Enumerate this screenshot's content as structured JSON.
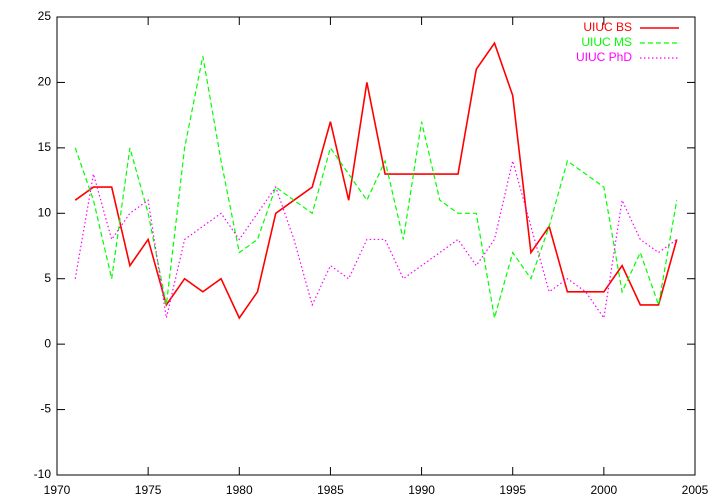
{
  "chart_data": {
    "type": "line",
    "x": [
      1971,
      1972,
      1973,
      1974,
      1975,
      1976,
      1977,
      1978,
      1979,
      1980,
      1981,
      1982,
      1983,
      1984,
      1985,
      1986,
      1987,
      1988,
      1989,
      1990,
      1991,
      1992,
      1993,
      1994,
      1995,
      1996,
      1997,
      1998,
      1999,
      2000,
      2001,
      2002,
      2003,
      2004
    ],
    "series": [
      {
        "name": "UIUC BS",
        "color": "#ff0000",
        "dash": "solid",
        "values": [
          11,
          12,
          12,
          6,
          8,
          3,
          5,
          4,
          5,
          2,
          4,
          10,
          11,
          12,
          17,
          11,
          20,
          13,
          13,
          13,
          13,
          13,
          21,
          23,
          19,
          7,
          9,
          4,
          4,
          4,
          6,
          3,
          3,
          8
        ]
      },
      {
        "name": "UIUC MS",
        "color": "#00ff00",
        "dash": "dashed",
        "values": [
          15,
          11,
          5,
          15,
          10,
          3,
          15,
          22,
          14,
          7,
          8,
          12,
          11,
          10,
          15,
          13,
          11,
          14,
          8,
          17,
          11,
          10,
          10,
          2,
          7,
          5,
          9,
          14,
          13,
          12,
          4,
          7,
          3,
          11
        ]
      },
      {
        "name": "UIUC PhD",
        "color": "#ff00ff",
        "dash": "dotted",
        "values": [
          5,
          13,
          8,
          10,
          11,
          2,
          8,
          9,
          10,
          8,
          10,
          12,
          8,
          3,
          6,
          5,
          8,
          8,
          5,
          6,
          7,
          8,
          6,
          8,
          14,
          9,
          4,
          5,
          4,
          2,
          11,
          8,
          7,
          8
        ]
      }
    ],
    "xlim": [
      1970,
      2005
    ],
    "xticks": [
      1970,
      1975,
      1980,
      1985,
      1990,
      1995,
      2000,
      2005
    ],
    "ylim": [
      -10,
      25
    ],
    "yticks": [
      -10,
      -5,
      0,
      5,
      10,
      15,
      20,
      25
    ],
    "legend": "top-right"
  }
}
